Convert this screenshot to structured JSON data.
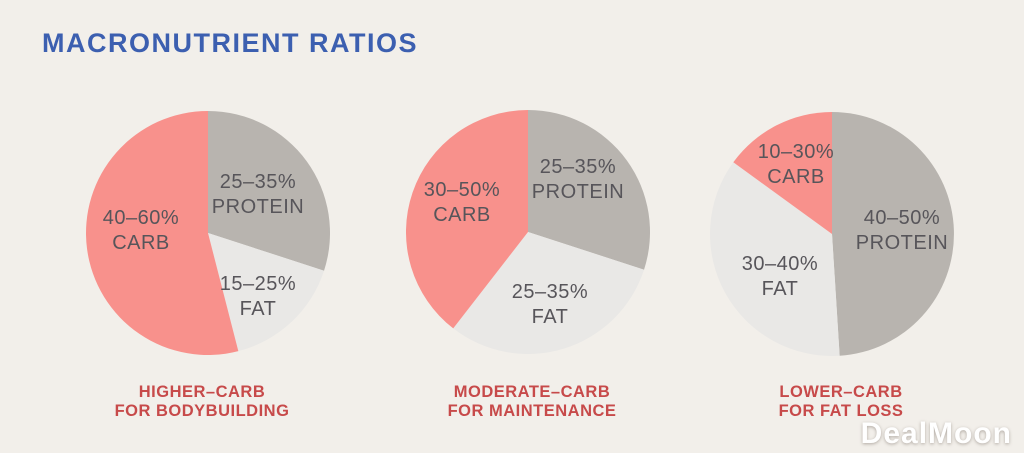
{
  "title": "MACRONUTRIENT RATIOS",
  "watermark": "DealMoon",
  "colors": {
    "carb": "#f8918c",
    "protein": "#b8b4af",
    "fat": "#e9e8e6",
    "title_blue": "#3c5fb0",
    "caption_red": "#c74a4a",
    "label_gray": "#57555a",
    "background": "#f2efea"
  },
  "chart_data": [
    {
      "type": "pie",
      "title": "HIGHER–CARB FOR BODYBUILDING",
      "caption": [
        "HIGHER–CARB",
        "FOR BODYBUILDING"
      ],
      "legend_position": "labels-inside",
      "slices": [
        {
          "nutrient": "PROTEIN",
          "range": "25–35%",
          "drawn_percent": 30,
          "color_key": "protein"
        },
        {
          "nutrient": "FAT",
          "range": "15–25%",
          "drawn_percent": 16,
          "color_key": "fat"
        },
        {
          "nutrient": "CARB",
          "range": "40–60%",
          "drawn_percent": 54,
          "color_key": "carb"
        }
      ]
    },
    {
      "type": "pie",
      "title": "MODERATE–CARB FOR MAINTENANCE",
      "caption": [
        "MODERATE–CARB",
        "FOR MAINTENANCE"
      ],
      "legend_position": "labels-inside",
      "slices": [
        {
          "nutrient": "PROTEIN",
          "range": "25–35%",
          "drawn_percent": 30,
          "color_key": "protein"
        },
        {
          "nutrient": "FAT",
          "range": "25–35%",
          "drawn_percent": 30.5,
          "color_key": "fat"
        },
        {
          "nutrient": "CARB",
          "range": "30–50%",
          "drawn_percent": 39.5,
          "color_key": "carb"
        }
      ]
    },
    {
      "type": "pie",
      "title": "LOWER–CARB FOR FAT LOSS",
      "caption": [
        "LOWER–CARB",
        "FOR FAT LOSS"
      ],
      "legend_position": "labels-inside",
      "slices": [
        {
          "nutrient": "PROTEIN",
          "range": "40–50%",
          "drawn_percent": 49,
          "color_key": "protein"
        },
        {
          "nutrient": "FAT",
          "range": "30–40%",
          "drawn_percent": 36,
          "color_key": "fat"
        },
        {
          "nutrient": "CARB",
          "range": "10–30%",
          "drawn_percent": 15,
          "color_key": "carb"
        }
      ]
    }
  ]
}
